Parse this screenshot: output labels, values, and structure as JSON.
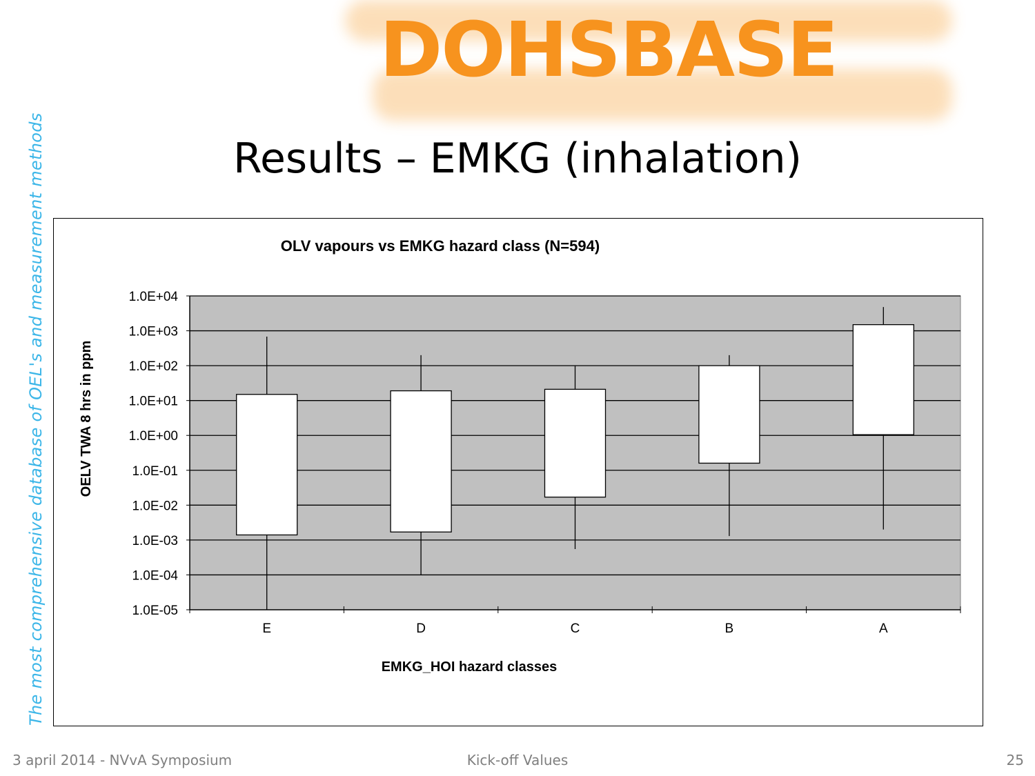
{
  "logo_text": "DOHSBASE",
  "side_text": "The most  comprehensive database of OEL's and measurement methods",
  "slide_title": "Results – EMKG (inhalation)",
  "footer": {
    "left": "3 april 2014 - NVvA Symposium",
    "center": "Kick-off Values",
    "page": "25"
  },
  "colors": {
    "plot_bg": "#c0c0c0",
    "box_fill": "#ffffff",
    "logo": "#f7931e",
    "side_text": "#3cb6e8"
  },
  "chart_data": {
    "type": "boxplot",
    "title": "OLV vapours vs EMKG hazard class (N=594)",
    "xlabel": "EMKG_HOI hazard classes",
    "ylabel": "OELV TWA 8 hrs in ppm",
    "yscale": "log",
    "ylim": [
      1e-05,
      10000
    ],
    "yticks": [
      "1.0E-05",
      "1.0E-04",
      "1.0E-03",
      "1.0E-02",
      "1.0E-01",
      "1.0E+00",
      "1.0E+01",
      "1.0E+02",
      "1.0E+03",
      "1.0E+04"
    ],
    "grid": true,
    "categories": [
      "E",
      "D",
      "C",
      "B",
      "A"
    ],
    "series": [
      {
        "whisker_low": 1e-05,
        "box_low": 0.0014,
        "box_high": 15,
        "whisker_high": 680
      },
      {
        "whisker_low": 0.0001,
        "box_low": 0.0017,
        "box_high": 19,
        "whisker_high": 200
      },
      {
        "whisker_low": 0.00055,
        "box_low": 0.017,
        "box_high": 21,
        "whisker_high": 100
      },
      {
        "whisker_low": 0.0013,
        "box_low": 0.16,
        "box_high": 100,
        "whisker_high": 200
      },
      {
        "whisker_low": 0.002,
        "box_low": 1.05,
        "box_high": 1500,
        "whisker_high": 4800
      }
    ]
  }
}
